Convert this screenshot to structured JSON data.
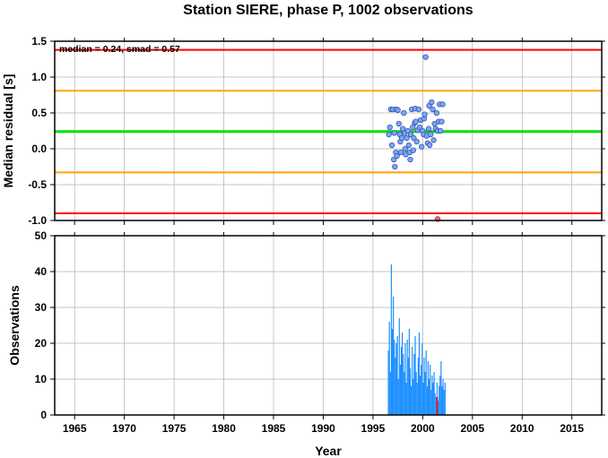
{
  "title": "Station SIERE, phase P, 1002 observations",
  "colors": {
    "median_line": "#00e000",
    "smad_lines": "#ffa500",
    "limit_lines": "#ff0000",
    "point_fill": "#7aa5ff",
    "point_outlier": "#ff6666",
    "bars": "#1e90ff",
    "bar_highlight": "#ff0000",
    "grid": "#b0b0b0"
  },
  "chart_data": [
    {
      "type": "scatter",
      "ylabel": "Median residual [s]",
      "annotation": "median = 0.24, smad = 0.57",
      "xlim": [
        1963,
        2018
      ],
      "ylim": [
        -1.0,
        1.5
      ],
      "yticks": [
        "1.5",
        "1.0",
        "0.5",
        "0.0",
        "-0.5",
        "-1.0"
      ],
      "grid": true,
      "hlines": [
        {
          "name": "median",
          "y": 0.24,
          "color": "#00e000"
        },
        {
          "name": "upper_smad",
          "y": 0.81,
          "color": "#ffa500"
        },
        {
          "name": "lower_smad",
          "y": -0.33,
          "color": "#ffa500"
        },
        {
          "name": "upper_limit",
          "y": 1.38,
          "color": "#ff0000"
        },
        {
          "name": "lower_limit",
          "y": -0.9,
          "color": "#ff0000"
        }
      ],
      "points": [
        [
          1996.6,
          0.2
        ],
        [
          1996.7,
          0.3
        ],
        [
          1996.8,
          0.55
        ],
        [
          1996.9,
          0.05
        ],
        [
          1997.0,
          0.55
        ],
        [
          1997.1,
          -0.15
        ],
        [
          1997.15,
          0.22
        ],
        [
          1997.2,
          -0.25
        ],
        [
          1997.3,
          -0.05
        ],
        [
          1997.35,
          0.55
        ],
        [
          1997.4,
          -0.1
        ],
        [
          1997.5,
          0.54
        ],
        [
          1997.6,
          0.35
        ],
        [
          1997.7,
          0.2
        ],
        [
          1997.75,
          0.1
        ],
        [
          1997.8,
          -0.05
        ],
        [
          1997.9,
          0.15
        ],
        [
          1998.0,
          0.28
        ],
        [
          1998.1,
          0.5
        ],
        [
          1998.2,
          0.22
        ],
        [
          1998.25,
          0.0
        ],
        [
          1998.3,
          -0.08
        ],
        [
          1998.4,
          0.15
        ],
        [
          1998.5,
          0.25
        ],
        [
          1998.6,
          0.05
        ],
        [
          1998.7,
          -0.05
        ],
        [
          1998.75,
          -0.15
        ],
        [
          1998.8,
          0.2
        ],
        [
          1998.9,
          0.55
        ],
        [
          1999.0,
          0.3
        ],
        [
          1999.05,
          -0.02
        ],
        [
          1999.1,
          0.15
        ],
        [
          1999.2,
          0.36
        ],
        [
          1999.25,
          0.56
        ],
        [
          1999.3,
          0.38
        ],
        [
          1999.4,
          0.1
        ],
        [
          1999.5,
          0.26
        ],
        [
          1999.6,
          0.55
        ],
        [
          1999.7,
          0.3
        ],
        [
          1999.8,
          0.4
        ],
        [
          1999.9,
          0.03
        ],
        [
          2000.0,
          0.25
        ],
        [
          2000.1,
          0.2
        ],
        [
          2000.15,
          0.42
        ],
        [
          2000.2,
          0.48
        ],
        [
          2000.3,
          1.28
        ],
        [
          2000.4,
          0.18
        ],
        [
          2000.5,
          0.08
        ],
        [
          2000.6,
          0.28
        ],
        [
          2000.65,
          0.6
        ],
        [
          2000.7,
          0.05
        ],
        [
          2000.8,
          0.2
        ],
        [
          2000.9,
          0.65
        ],
        [
          2001.0,
          0.55
        ],
        [
          2001.1,
          0.12
        ],
        [
          2001.2,
          0.35
        ],
        [
          2001.3,
          0.28
        ],
        [
          2001.4,
          0.5
        ],
        [
          2001.5,
          0.25
        ],
        [
          2001.6,
          0.38
        ],
        [
          2001.7,
          0.62
        ],
        [
          2001.8,
          0.25
        ],
        [
          2001.9,
          0.38
        ],
        [
          2002.0,
          0.62
        ]
      ],
      "outliers": [
        [
          2001.5,
          -0.98
        ]
      ]
    },
    {
      "type": "bar",
      "xlabel": "Year",
      "ylabel": "Observations",
      "xlim": [
        1963,
        2018
      ],
      "ylim": [
        0,
        50
      ],
      "xticks": [
        "1965",
        "1970",
        "1975",
        "1980",
        "1985",
        "1990",
        "1995",
        "2000",
        "2005",
        "2010",
        "2015"
      ],
      "yticks": [
        "50",
        "40",
        "30",
        "20",
        "10",
        "0"
      ],
      "grid": true,
      "bars": [
        [
          1996.55,
          18
        ],
        [
          1996.65,
          26
        ],
        [
          1996.75,
          12
        ],
        [
          1996.85,
          42
        ],
        [
          1996.95,
          24
        ],
        [
          1997.05,
          33
        ],
        [
          1997.15,
          21
        ],
        [
          1997.25,
          16
        ],
        [
          1997.35,
          20
        ],
        [
          1997.45,
          22
        ],
        [
          1997.55,
          10
        ],
        [
          1997.65,
          27
        ],
        [
          1997.75,
          14
        ],
        [
          1997.85,
          19
        ],
        [
          1997.95,
          23
        ],
        [
          1998.05,
          17
        ],
        [
          1998.15,
          12
        ],
        [
          1998.25,
          20
        ],
        [
          1998.35,
          9
        ],
        [
          1998.45,
          21
        ],
        [
          1998.55,
          16
        ],
        [
          1998.65,
          24
        ],
        [
          1998.75,
          13
        ],
        [
          1998.85,
          8
        ],
        [
          1998.95,
          19
        ],
        [
          1999.05,
          10
        ],
        [
          1999.15,
          17
        ],
        [
          1999.25,
          22
        ],
        [
          1999.35,
          12
        ],
        [
          1999.45,
          9
        ],
        [
          1999.55,
          16
        ],
        [
          1999.65,
          23
        ],
        [
          1999.75,
          11
        ],
        [
          1999.85,
          14
        ],
        [
          1999.95,
          20
        ],
        [
          2000.05,
          9
        ],
        [
          2000.15,
          16
        ],
        [
          2000.25,
          12
        ],
        [
          2000.35,
          18
        ],
        [
          2000.45,
          8
        ],
        [
          2000.55,
          15
        ],
        [
          2000.65,
          10
        ],
        [
          2000.75,
          14
        ],
        [
          2000.85,
          7
        ],
        [
          2000.95,
          11
        ],
        [
          2001.05,
          9
        ],
        [
          2001.15,
          12
        ],
        [
          2001.25,
          6
        ],
        [
          2001.35,
          5
        ],
        [
          2001.45,
          9
        ],
        [
          2001.55,
          4
        ],
        [
          2001.65,
          8
        ],
        [
          2001.75,
          11
        ],
        [
          2001.85,
          15
        ],
        [
          2001.95,
          8
        ],
        [
          2002.05,
          10
        ],
        [
          2002.15,
          7
        ],
        [
          2002.25,
          9
        ]
      ],
      "highlight_bars": [
        [
          2001.45,
          5
        ]
      ]
    }
  ]
}
